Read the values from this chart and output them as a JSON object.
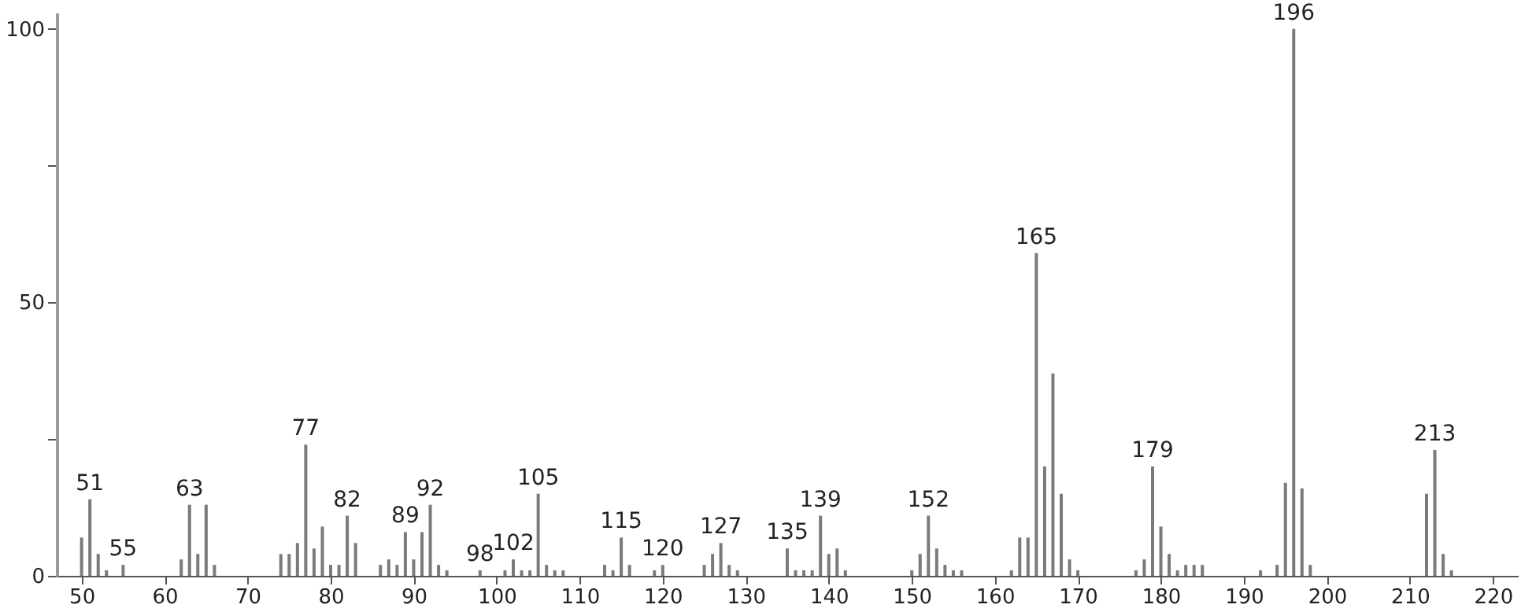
{
  "chart_data": {
    "type": "bar",
    "x": [
      50,
      51,
      52,
      53,
      55,
      62,
      63,
      64,
      65,
      66,
      74,
      75,
      76,
      77,
      78,
      79,
      80,
      81,
      82,
      83,
      86,
      87,
      88,
      89,
      90,
      91,
      92,
      93,
      94,
      98,
      101,
      102,
      103,
      104,
      105,
      106,
      107,
      108,
      113,
      114,
      115,
      116,
      119,
      120,
      125,
      126,
      127,
      128,
      129,
      135,
      136,
      137,
      138,
      139,
      140,
      141,
      142,
      150,
      151,
      152,
      153,
      154,
      155,
      156,
      162,
      163,
      164,
      165,
      166,
      167,
      168,
      169,
      170,
      177,
      178,
      179,
      180,
      181,
      182,
      183,
      184,
      185,
      192,
      194,
      195,
      196,
      197,
      198,
      212,
      213,
      214,
      215
    ],
    "values": [
      7,
      14,
      4,
      1,
      2,
      3,
      13,
      4,
      13,
      2,
      4,
      4,
      6,
      24,
      5,
      9,
      2,
      2,
      11,
      6,
      2,
      3,
      2,
      8,
      3,
      8,
      13,
      2,
      1,
      1,
      1,
      3,
      1,
      1,
      15,
      2,
      1,
      1,
      2,
      1,
      7,
      2,
      1,
      2,
      2,
      4,
      6,
      2,
      1,
      5,
      1,
      1,
      1,
      11,
      4,
      5,
      1,
      1,
      4,
      11,
      5,
      2,
      1,
      1,
      1,
      7,
      7,
      59,
      20,
      37,
      15,
      3,
      1,
      1,
      3,
      20,
      9,
      4,
      1,
      2,
      2,
      2,
      1,
      2,
      17,
      100,
      16,
      2,
      15,
      23,
      4,
      1
    ],
    "color": "#7a7a7a",
    "xlim": [
      47,
      223
    ],
    "xticks": [
      50,
      60,
      70,
      80,
      90,
      100,
      110,
      120,
      130,
      140,
      150,
      160,
      170,
      180,
      190,
      200,
      210,
      220
    ],
    "ylim": [
      0,
      103
    ],
    "yticks": [
      0,
      {
        "value": 25,
        "label": null
      },
      50,
      {
        "value": 75,
        "label": null
      },
      100
    ],
    "annotations": [
      {
        "text": "51",
        "x": 51,
        "y": 14
      },
      {
        "text": "55",
        "x": 55,
        "y": 2
      },
      {
        "text": "63",
        "x": 63,
        "y": 13
      },
      {
        "text": "77",
        "x": 77,
        "y": 24
      },
      {
        "text": "82",
        "x": 82,
        "y": 11
      },
      {
        "text": "89",
        "x": 89,
        "y": 8
      },
      {
        "text": "92",
        "x": 92,
        "y": 13
      },
      {
        "text": "98",
        "x": 98,
        "y": 1
      },
      {
        "text": "102",
        "x": 102,
        "y": 3
      },
      {
        "text": "105",
        "x": 105,
        "y": 15
      },
      {
        "text": "115",
        "x": 115,
        "y": 7
      },
      {
        "text": "120",
        "x": 120,
        "y": 2
      },
      {
        "text": "127",
        "x": 127,
        "y": 6
      },
      {
        "text": "135",
        "x": 135,
        "y": 5
      },
      {
        "text": "139",
        "x": 139,
        "y": 11
      },
      {
        "text": "152",
        "x": 152,
        "y": 11
      },
      {
        "text": "165",
        "x": 165,
        "y": 59
      },
      {
        "text": "179",
        "x": 179,
        "y": 20
      },
      {
        "text": "196",
        "x": 196,
        "y": 100
      },
      {
        "text": "213",
        "x": 213,
        "y": 23
      }
    ],
    "grid": false
  }
}
